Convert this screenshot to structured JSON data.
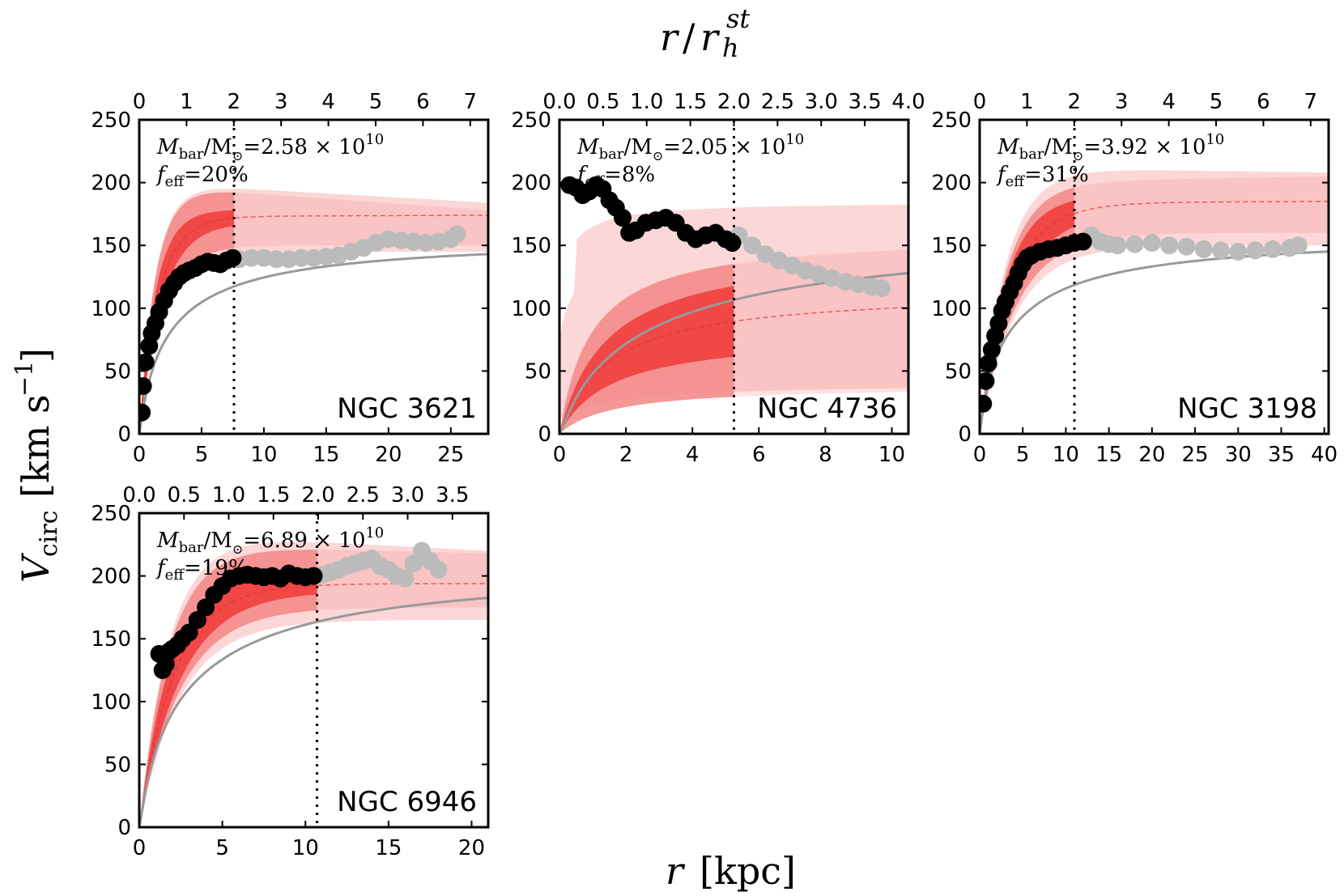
{
  "figure": {
    "top_label_main": "r",
    "top_label_slash": "/",
    "top_label_var": "r",
    "top_label_sub": "h",
    "top_label_sup": "st",
    "bottom_label_var": "r",
    "bottom_label_unit": "[kpc]",
    "y_label_var": "V",
    "y_label_sub": "circ",
    "y_label_unit_open": "[km s",
    "y_label_unit_sup": "−1",
    "y_label_unit_close": "]"
  },
  "colors": {
    "band_inner": "#f02020",
    "band_mid": "#f48a8a",
    "band_outer": "#fbd0d0",
    "baryon_curve": "#999999",
    "inner_points": "#000000",
    "outer_points": "#bbbbbb"
  },
  "chart_data": [
    {
      "type": "scatter",
      "galaxy": "NGC 3621",
      "mass_label_var": "M",
      "mass_label_sub": "bar",
      "mass_label_rest": "/M",
      "mass_label_value": "=2.58 × 10",
      "mass_label_exp": "10",
      "feff_label_var": "f",
      "feff_label_sub": "eff",
      "feff_label_value": "=20%",
      "xlim": [
        0,
        28
      ],
      "xticks": [
        0,
        5,
        10,
        15,
        20,
        25
      ],
      "ylim": [
        0,
        250
      ],
      "yticks": [
        0,
        50,
        100,
        150,
        200,
        250
      ],
      "top_xlim": [
        0,
        7.38
      ],
      "top_xticks": [
        0,
        1,
        2,
        3,
        4,
        5,
        6,
        7
      ],
      "top_tick_format": "int",
      "rh2_kpc": 7.6,
      "band_peak_inner": 178,
      "band_peak_mid": 198,
      "band_peak_outer": 200,
      "band_scale_kpc": 1.3,
      "band_flat": [
        [
          168,
          180,
          168,
          184
        ],
        [
          150,
          178,
          145,
          184
        ]
      ],
      "baryon_vmax": 157,
      "baryon_scale_kpc": 5.0,
      "inner_points": {
        "r": [
          0.2,
          0.3,
          0.5,
          0.8,
          1.0,
          1.3,
          1.6,
          2.0,
          2.4,
          2.8,
          3.2,
          3.6,
          4.0,
          4.5,
          5.0,
          5.5,
          6.0,
          6.5,
          7.0,
          7.5
        ],
        "v": [
          17,
          38,
          57,
          70,
          80,
          88,
          97,
          106,
          114,
          120,
          125,
          128,
          130,
          132,
          135,
          137,
          136,
          135,
          138,
          140
        ]
      },
      "outer_points": {
        "r": [
          8,
          9,
          10,
          11,
          12,
          13,
          14,
          15,
          16,
          17,
          18,
          19,
          20,
          21,
          22,
          23,
          24,
          25,
          25.5
        ],
        "v": [
          139,
          140,
          140,
          139,
          139,
          140,
          140,
          141,
          142,
          145,
          148,
          152,
          155,
          154,
          153,
          152,
          153,
          155,
          159
        ]
      }
    },
    {
      "type": "scatter",
      "galaxy": "NGC 4736",
      "mass_label_var": "M",
      "mass_label_sub": "bar",
      "mass_label_rest": "/M",
      "mass_label_value": "=2.05 × 10",
      "mass_label_exp": "10",
      "feff_label_var": "f",
      "feff_label_sub": "eff",
      "feff_label_value": "=8%",
      "xlim": [
        0,
        10.5
      ],
      "xticks": [
        0,
        2,
        4,
        6,
        8,
        10
      ],
      "ylim": [
        0,
        250
      ],
      "yticks": [
        0,
        50,
        100,
        150,
        200,
        250
      ],
      "top_xlim": [
        0,
        4.0
      ],
      "top_xticks": [
        0.0,
        0.5,
        1.0,
        1.5,
        2.0,
        2.5,
        3.0,
        3.5,
        4.0
      ],
      "top_tick_format": "1dp",
      "rh2_kpc": 5.25,
      "band_rising": true,
      "band_inner": {
        "lo": 80,
        "hi": 150
      },
      "band_mid": {
        "lo": 35,
        "hi": 160
      },
      "band_outer": {
        "lo": 10,
        "hi": 185
      },
      "baryon_vmax": 165,
      "baryon_scale_kpc": 6.0,
      "inner_points": {
        "r": [
          0.3,
          0.5,
          0.7,
          0.9,
          1.1,
          1.3,
          1.5,
          1.7,
          1.9,
          2.1,
          2.3,
          2.6,
          2.9,
          3.2,
          3.5,
          3.8,
          4.1,
          4.4,
          4.7,
          5.0,
          5.2
        ],
        "v": [
          198,
          196,
          190,
          193,
          198,
          195,
          186,
          180,
          172,
          160,
          162,
          168,
          170,
          172,
          168,
          160,
          155,
          158,
          160,
          155,
          152
        ]
      },
      "outer_points": {
        "r": [
          5.4,
          5.8,
          6.2,
          6.6,
          7.0,
          7.4,
          7.8,
          8.2,
          8.6,
          9.0,
          9.4,
          9.7
        ],
        "v": [
          158,
          150,
          143,
          138,
          134,
          130,
          127,
          124,
          121,
          119,
          117,
          116
        ]
      }
    },
    {
      "type": "scatter",
      "galaxy": "NGC 3198",
      "mass_label_var": "M",
      "mass_label_sub": "bar",
      "mass_label_rest": "/M",
      "mass_label_value": "=3.92 × 10",
      "mass_label_exp": "10",
      "feff_label_var": "f",
      "feff_label_sub": "eff",
      "feff_label_value": "=31%",
      "xlim": [
        0,
        40.5
      ],
      "xticks": [
        0,
        5,
        10,
        15,
        20,
        25,
        30,
        35,
        40
      ],
      "ylim": [
        0,
        250
      ],
      "yticks": [
        0,
        50,
        100,
        150,
        200,
        250
      ],
      "top_xlim": [
        0,
        7.38
      ],
      "top_xticks": [
        0,
        1,
        2,
        3,
        4,
        5,
        6,
        7
      ],
      "top_tick_format": "int",
      "rh2_kpc": 11.0,
      "band_peak_inner": 190,
      "band_peak_mid": 200,
      "band_peak_outer": 212,
      "band_scale_kpc": 3.0,
      "band_flat": [
        [
          178,
          192,
          172,
          195
        ],
        [
          160,
          205,
          150,
          208
        ]
      ],
      "baryon_vmax": 160,
      "baryon_scale_kpc": 8.0,
      "inner_points": {
        "r": [
          0.4,
          0.7,
          1.0,
          1.4,
          1.8,
          2.2,
          2.6,
          3.0,
          3.5,
          4.0,
          4.5,
          5.0,
          5.5,
          6.0,
          7.0,
          8.0,
          9.0,
          10.0,
          11.0,
          12.0
        ],
        "v": [
          24,
          42,
          56,
          67,
          78,
          88,
          98,
          105,
          113,
          120,
          128,
          135,
          140,
          142,
          145,
          147,
          148,
          150,
          152,
          153
        ]
      },
      "outer_points": {
        "r": [
          13,
          14,
          15,
          16,
          18,
          20,
          22,
          24,
          26,
          28,
          30,
          32,
          34,
          36,
          37
        ],
        "v": [
          158,
          153,
          151,
          150,
          151,
          152,
          150,
          149,
          147,
          146,
          145,
          146,
          147,
          148,
          150
        ]
      }
    },
    {
      "type": "scatter",
      "galaxy": "NGC 6946",
      "mass_label_var": "M",
      "mass_label_sub": "bar",
      "mass_label_rest": "/M",
      "mass_label_value": "=6.89 × 10",
      "mass_label_exp": "10",
      "feff_label_var": "f",
      "feff_label_sub": "eff",
      "feff_label_value": "=19%",
      "xlim": [
        0,
        21
      ],
      "xticks": [
        0,
        5,
        10,
        15,
        20
      ],
      "ylim": [
        0,
        250
      ],
      "yticks": [
        0,
        50,
        100,
        150,
        200,
        250
      ],
      "top_xlim": [
        0,
        3.9
      ],
      "top_xticks": [
        0.0,
        0.5,
        1.0,
        1.5,
        2.0,
        2.5,
        3.0,
        3.5
      ],
      "top_tick_format": "1dp",
      "rh2_kpc": 10.7,
      "band_peak_inner": 200,
      "band_peak_mid": 225,
      "band_peak_outer": 235,
      "band_scale_kpc": 1.8,
      "band_flat": [
        [
          188,
          200,
          185,
          205
        ],
        [
          175,
          218,
          165,
          220
        ]
      ],
      "baryon_vmax": 210,
      "baryon_scale_kpc": 6.0,
      "inner_points": {
        "r": [
          1.2,
          1.4,
          1.6,
          1.8,
          2.0,
          2.3,
          2.6,
          3.0,
          3.5,
          4.0,
          4.5,
          5.0,
          5.5,
          6.0,
          6.5,
          7.0,
          7.5,
          8.0,
          8.5,
          9.0,
          9.5,
          10.0,
          10.5
        ],
        "v": [
          138,
          125,
          130,
          140,
          142,
          145,
          150,
          155,
          165,
          175,
          185,
          192,
          198,
          200,
          201,
          200,
          199,
          200,
          198,
          202,
          200,
          199,
          200
        ]
      },
      "outer_points": {
        "r": [
          11,
          11.5,
          12,
          12.5,
          13,
          13.5,
          14,
          14.5,
          15,
          15.5,
          16,
          16.5,
          17,
          17.5,
          18
        ],
        "v": [
          201,
          203,
          205,
          208,
          210,
          212,
          214,
          208,
          205,
          200,
          198,
          210,
          220,
          212,
          205
        ]
      }
    }
  ]
}
